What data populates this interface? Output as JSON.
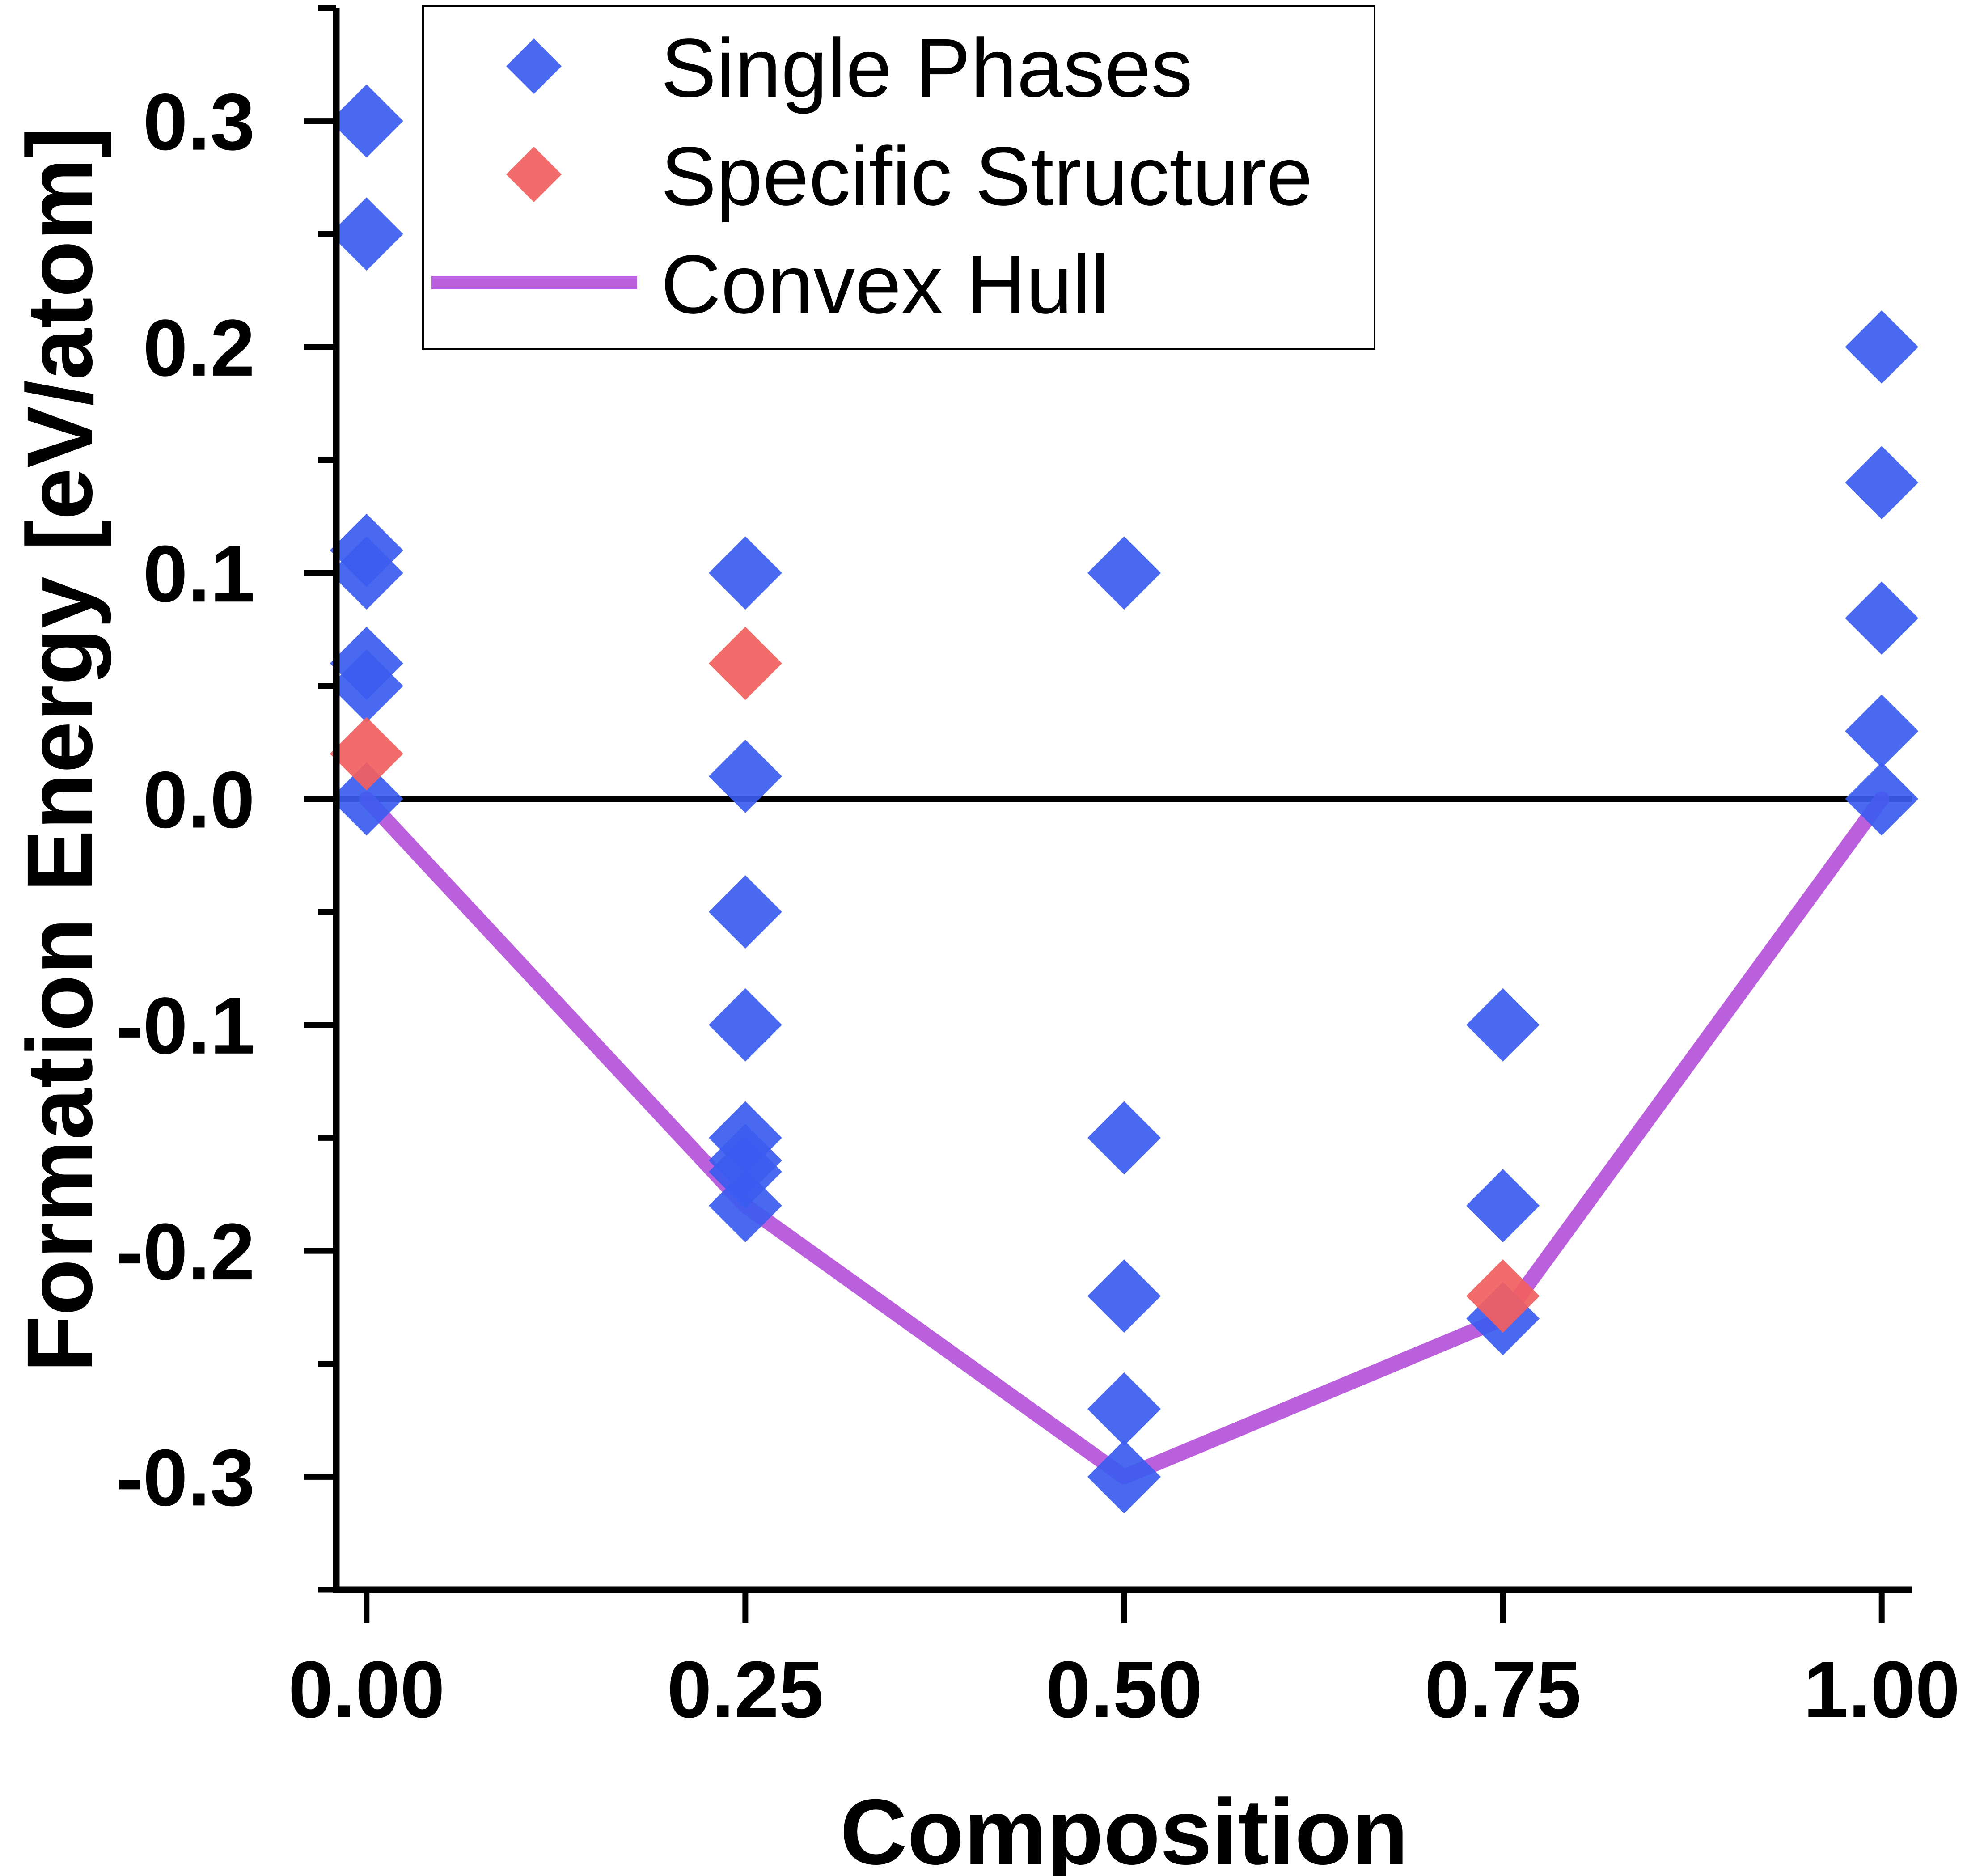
{
  "chart_data": {
    "type": "scatter",
    "title": "",
    "xlabel": "Composition",
    "ylabel": "Formation Energy [eV/atom]",
    "xlim": [
      -0.02,
      1.02
    ],
    "ylim": [
      -0.35,
      0.35
    ],
    "x_ticks": [
      "0.00",
      "0.25",
      "0.50",
      "0.75",
      "1.00"
    ],
    "x_tick_values": [
      0,
      0.25,
      0.5,
      0.75,
      1.0
    ],
    "y_ticks": [
      "0.3",
      "0.2",
      "0.1",
      "0.0",
      "-0.1",
      "-0.2",
      "-0.3"
    ],
    "y_tick_values": [
      0.3,
      0.2,
      0.1,
      0.0,
      -0.1,
      -0.2,
      -0.3
    ],
    "grid": false,
    "zero_line": true,
    "legend_placement": "top",
    "series": [
      {
        "name": "Single Phases",
        "marker": "diamond",
        "color": "#3b5cf0",
        "points": [
          [
            0,
            0.3
          ],
          [
            0,
            0.25
          ],
          [
            0,
            0.11
          ],
          [
            0,
            0.1
          ],
          [
            0,
            0.06
          ],
          [
            0,
            0.05
          ],
          [
            0,
            0.0
          ],
          [
            0.25,
            0.1
          ],
          [
            0.25,
            0.01
          ],
          [
            0.25,
            -0.05
          ],
          [
            0.25,
            -0.1
          ],
          [
            0.25,
            -0.15
          ],
          [
            0.25,
            -0.16
          ],
          [
            0.25,
            -0.165
          ],
          [
            0.25,
            -0.18
          ],
          [
            0.5,
            0.1
          ],
          [
            0.5,
            -0.15
          ],
          [
            0.5,
            -0.22
          ],
          [
            0.5,
            -0.27
          ],
          [
            0.5,
            -0.3
          ],
          [
            0.75,
            -0.1
          ],
          [
            0.75,
            -0.18
          ],
          [
            0.75,
            -0.23
          ],
          [
            1.0,
            0.2
          ],
          [
            1.0,
            0.14
          ],
          [
            1.0,
            0.08
          ],
          [
            1.0,
            0.03
          ],
          [
            1.0,
            0.0
          ]
        ]
      },
      {
        "name": "Specific Structure",
        "marker": "diamond",
        "color": "#f26060",
        "points": [
          [
            0,
            0.02
          ],
          [
            0.25,
            0.06
          ],
          [
            0.75,
            -0.22
          ]
        ]
      },
      {
        "name": "Convex Hull",
        "marker": "line",
        "color": "#b44fd8",
        "points": [
          [
            0,
            0.0
          ],
          [
            0.25,
            -0.18
          ],
          [
            0.5,
            -0.3
          ],
          [
            0.75,
            -0.23
          ],
          [
            1.0,
            0.0
          ]
        ]
      }
    ]
  }
}
